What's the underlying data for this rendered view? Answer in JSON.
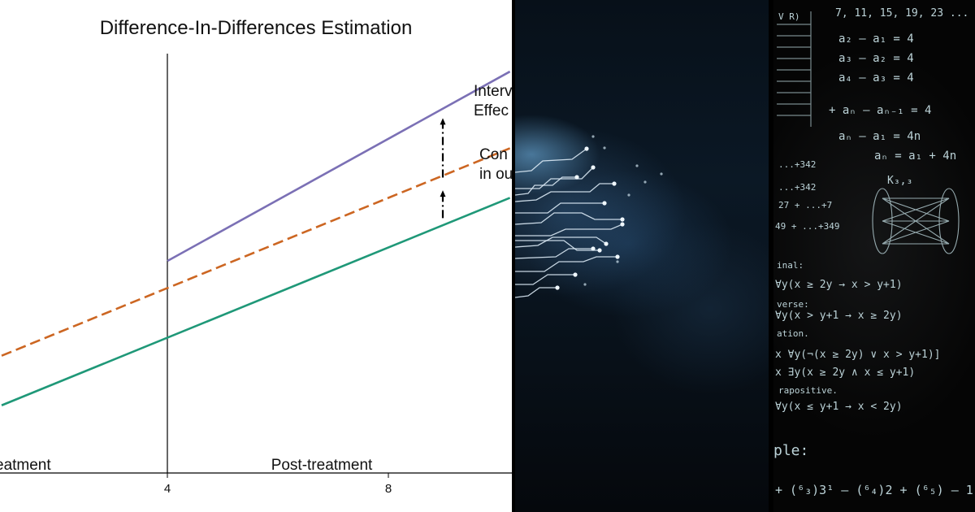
{
  "chart_data": {
    "type": "line",
    "title": "Difference-In-Differences Estimation",
    "x_ticks": [
      4,
      8
    ],
    "xlim": [
      1,
      10.2
    ],
    "ylim": [
      0,
      10
    ],
    "treatment_time": 4,
    "series": [
      {
        "name": "Intervention",
        "style": "solid",
        "color": "#7b70b5",
        "x": [
          4,
          10.2
        ],
        "y": [
          4.7,
          8.9
        ]
      },
      {
        "name": "Counterfactual",
        "style": "dashed",
        "color": "#cc6622",
        "x": [
          1,
          10.2
        ],
        "y": [
          2.6,
          7.2
        ]
      },
      {
        "name": "Control",
        "style": "solid",
        "color": "#1f9878",
        "x": [
          1,
          10.2
        ],
        "y": [
          1.5,
          6.1
        ]
      }
    ],
    "arrows": [
      {
        "x": 9.0,
        "from": 6.55,
        "to": 7.85
      },
      {
        "x": 9.0,
        "from": 5.65,
        "to": 6.25
      }
    ],
    "region_labels": [
      "eatment",
      "Post-treatment"
    ],
    "annotations": [
      {
        "lines": [
          "Interv",
          "Effec"
        ]
      },
      {
        "lines": [
          "Con",
          "in ou"
        ]
      }
    ]
  },
  "chalkboard": {
    "lines": [
      "7, 11, 15, 19, 23 ...",
      "a₂ – a₁ = 4",
      "a₃ – a₂ = 4",
      "a₄ – a₃ = 4",
      "+ aₙ – aₙ₋₁ = 4",
      "aₙ – a₁ = 4n",
      "aₙ = a₁ + 4n",
      "...+342",
      "...+342",
      "27 + ...+7",
      "49 + ...+349",
      "K₃,₃",
      "inal:",
      "∀y(x ≥ 2y → x > y+1)",
      "verse:",
      "∀y(x > y+1 → x ≥ 2y)",
      "ation.",
      "x ∀y(¬(x ≥ 2y) ∨ x > y+1)]",
      "x ∃y(x ≥ 2y ∧ x ≤ y+1)",
      "rapositive.",
      "∀y(x ≤ y+1 → x < 2y)",
      "ple:",
      "+ (⁶₃)3¹ – (⁶₄)2 + (⁶₅) – 1"
    ]
  },
  "colors": {
    "divider": "#000000",
    "axis": "#000000"
  }
}
